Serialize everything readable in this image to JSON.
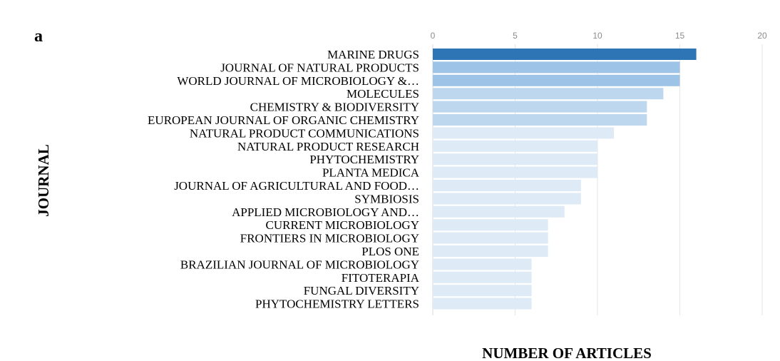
{
  "panel_label": "a",
  "chart_data": {
    "type": "bar",
    "orientation": "horizontal",
    "title": "",
    "xlabel": "NUMBER OF ARTICLES",
    "ylabel": "JOURNAL",
    "xlim": [
      0,
      20
    ],
    "x_ticks": [
      "0",
      "5",
      "10",
      "15",
      "20"
    ],
    "tick_position": "top",
    "grid": true,
    "categories": [
      "MARINE DRUGS",
      "JOURNAL OF NATURAL PRODUCTS",
      "WORLD JOURNAL OF MICROBIOLOGY &…",
      "MOLECULES",
      "CHEMISTRY & BIODIVERSITY",
      "EUROPEAN JOURNAL OF ORGANIC CHEMISTRY",
      "NATURAL PRODUCT COMMUNICATIONS",
      "NATURAL PRODUCT RESEARCH",
      "PHYTOCHEMISTRY",
      "PLANTA MEDICA",
      "JOURNAL OF AGRICULTURAL AND FOOD…",
      "SYMBIOSIS",
      "APPLIED MICROBIOLOGY AND…",
      "CURRENT MICROBIOLOGY",
      "FRONTIERS IN MICROBIOLOGY",
      "PLOS ONE",
      "BRAZILIAN JOURNAL OF MICROBIOLOGY",
      "FITOTERAPIA",
      "FUNGAL DIVERSITY",
      "PHYTOCHEMISTRY LETTERS"
    ],
    "values": [
      16,
      15,
      15,
      14,
      13,
      13,
      11,
      10,
      10,
      10,
      9,
      9,
      8,
      7,
      7,
      7,
      6,
      6,
      6,
      6
    ],
    "color_scale": {
      "16": "#2e75b6",
      "15": "#9dc3e6",
      "14": "#bdd7ee",
      "13": "#bdd7ee",
      "11": "#deebf7",
      "default": "#deebf7"
    }
  }
}
